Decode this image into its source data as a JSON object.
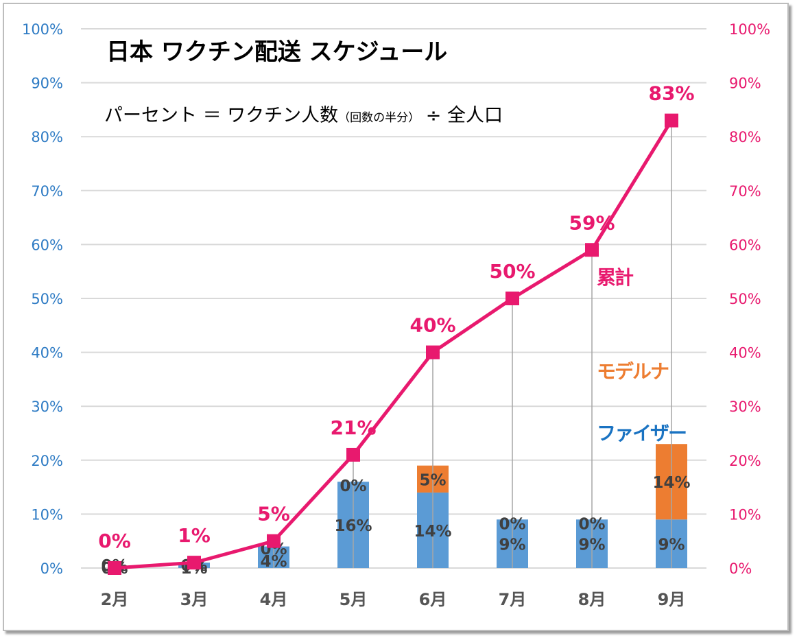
{
  "chart_data": {
    "type": "bar",
    "title": "日本 ワクチン配送 スケジュール",
    "subtitle": {
      "main_before": "パーセント ＝ ワクチン人数",
      "small": "（回数の半分）",
      "main_after": " ÷ 全人口"
    },
    "categories": [
      "2月",
      "3月",
      "4月",
      "5月",
      "6月",
      "7月",
      "8月",
      "9月"
    ],
    "series": [
      {
        "name": "ファイザー",
        "type": "stacked-bar",
        "axis": "left",
        "color": "#5b9bd5",
        "values": [
          0,
          1,
          4,
          16,
          14,
          9,
          9,
          9
        ],
        "labels": [
          "0%",
          "1%",
          "4%",
          "16%",
          "14%",
          "9%",
          "9%",
          "9%"
        ]
      },
      {
        "name": "モデルナ",
        "type": "stacked-bar",
        "axis": "left",
        "color": "#ed7d31",
        "values": [
          0,
          0,
          0,
          0,
          5,
          0,
          0,
          14
        ],
        "labels": [
          "0%",
          "0%",
          "0%",
          "0%",
          "5%",
          "0%",
          "0%",
          "14%"
        ]
      },
      {
        "name": "累計",
        "type": "line",
        "axis": "right",
        "color": "#e8196e",
        "values": [
          0,
          1,
          5,
          21,
          40,
          50,
          59,
          83
        ],
        "labels": [
          "0%",
          "1%",
          "5%",
          "21%",
          "40%",
          "50%",
          "59%",
          "83%"
        ]
      }
    ],
    "legend": {
      "placement": "right-inside",
      "entries": [
        {
          "name": "累計",
          "color": "#e8196e"
        },
        {
          "name": "モデルナ",
          "color": "#ed7d31"
        },
        {
          "name": "ファイザー",
          "color": "#1a73c2"
        }
      ]
    },
    "y_left": {
      "ylim": [
        0,
        100
      ],
      "ticks": [
        "0%",
        "10%",
        "20%",
        "30%",
        "40%",
        "50%",
        "60%",
        "70%",
        "80%",
        "90%",
        "100%"
      ],
      "color": "#2e7bc4"
    },
    "y_right": {
      "ylim": [
        0,
        100
      ],
      "ticks": [
        "0%",
        "10%",
        "20%",
        "30%",
        "40%",
        "50%",
        "60%",
        "70%",
        "80%",
        "90%",
        "100%"
      ],
      "color": "#e8196e"
    },
    "xlabel": "",
    "ylabel": "",
    "grid": true,
    "drop_lines": true
  }
}
